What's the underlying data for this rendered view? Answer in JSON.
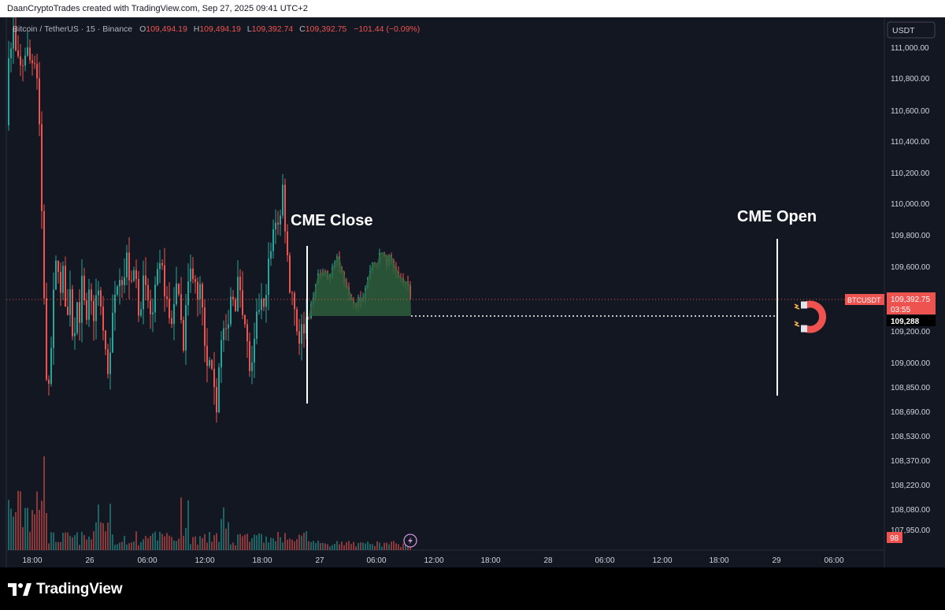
{
  "header": {
    "text": "DaanCryptoTrades created with TradingView.com, Sep 27, 2025 09:41 UTC+2"
  },
  "legend": {
    "symbol": "Bitcoin / TetherUS · 15 · Binance",
    "o_label": "O",
    "o_value": "109,494.19",
    "h_label": "H",
    "h_value": "109,494.19",
    "l_label": "L",
    "l_value": "109,392.74",
    "c_label": "C",
    "c_value": "109,392.75",
    "change": "−101.44 (−0.09%)"
  },
  "currency_label": "USDT",
  "annotations": {
    "cme_close": "CME Close",
    "cme_open": "CME Open"
  },
  "price_tag": {
    "symbol": "BTCUSDT",
    "price": "109,392.75",
    "countdown": "03:55"
  },
  "gap_level": "109,288",
  "volume_tag": "98",
  "footer": {
    "brand": "TradingView"
  },
  "colors": {
    "up": "#26a69a",
    "down": "#ef5350",
    "background": "#131722",
    "gap_fill": "#2e5e3a"
  },
  "icons": [
    "magnet-icon",
    "lightning-icon",
    "tradingview-logo-icon"
  ],
  "chart_data": {
    "type": "candlestick",
    "y_scale": "log",
    "price_axis_labels": [
      "111,000.00",
      "110,800.00",
      "110,600.00",
      "110,400.00",
      "110,200.00",
      "110,000.00",
      "109,800.00",
      "109,600.00",
      "109,200.00",
      "109,000.00",
      "108,850.00",
      "108,690.00",
      "108,530.00",
      "108,370.00",
      "108,220.00",
      "108,080.00",
      "107,950.00"
    ],
    "time_axis_labels": [
      "18:00",
      "26",
      "06:00",
      "12:00",
      "18:00",
      "27",
      "06:00",
      "12:00",
      "18:00",
      "28",
      "06:00",
      "12:00",
      "18:00",
      "29",
      "06:00"
    ],
    "current_price": 109392.75,
    "gap_level": 109288,
    "last_volume": 98
  }
}
